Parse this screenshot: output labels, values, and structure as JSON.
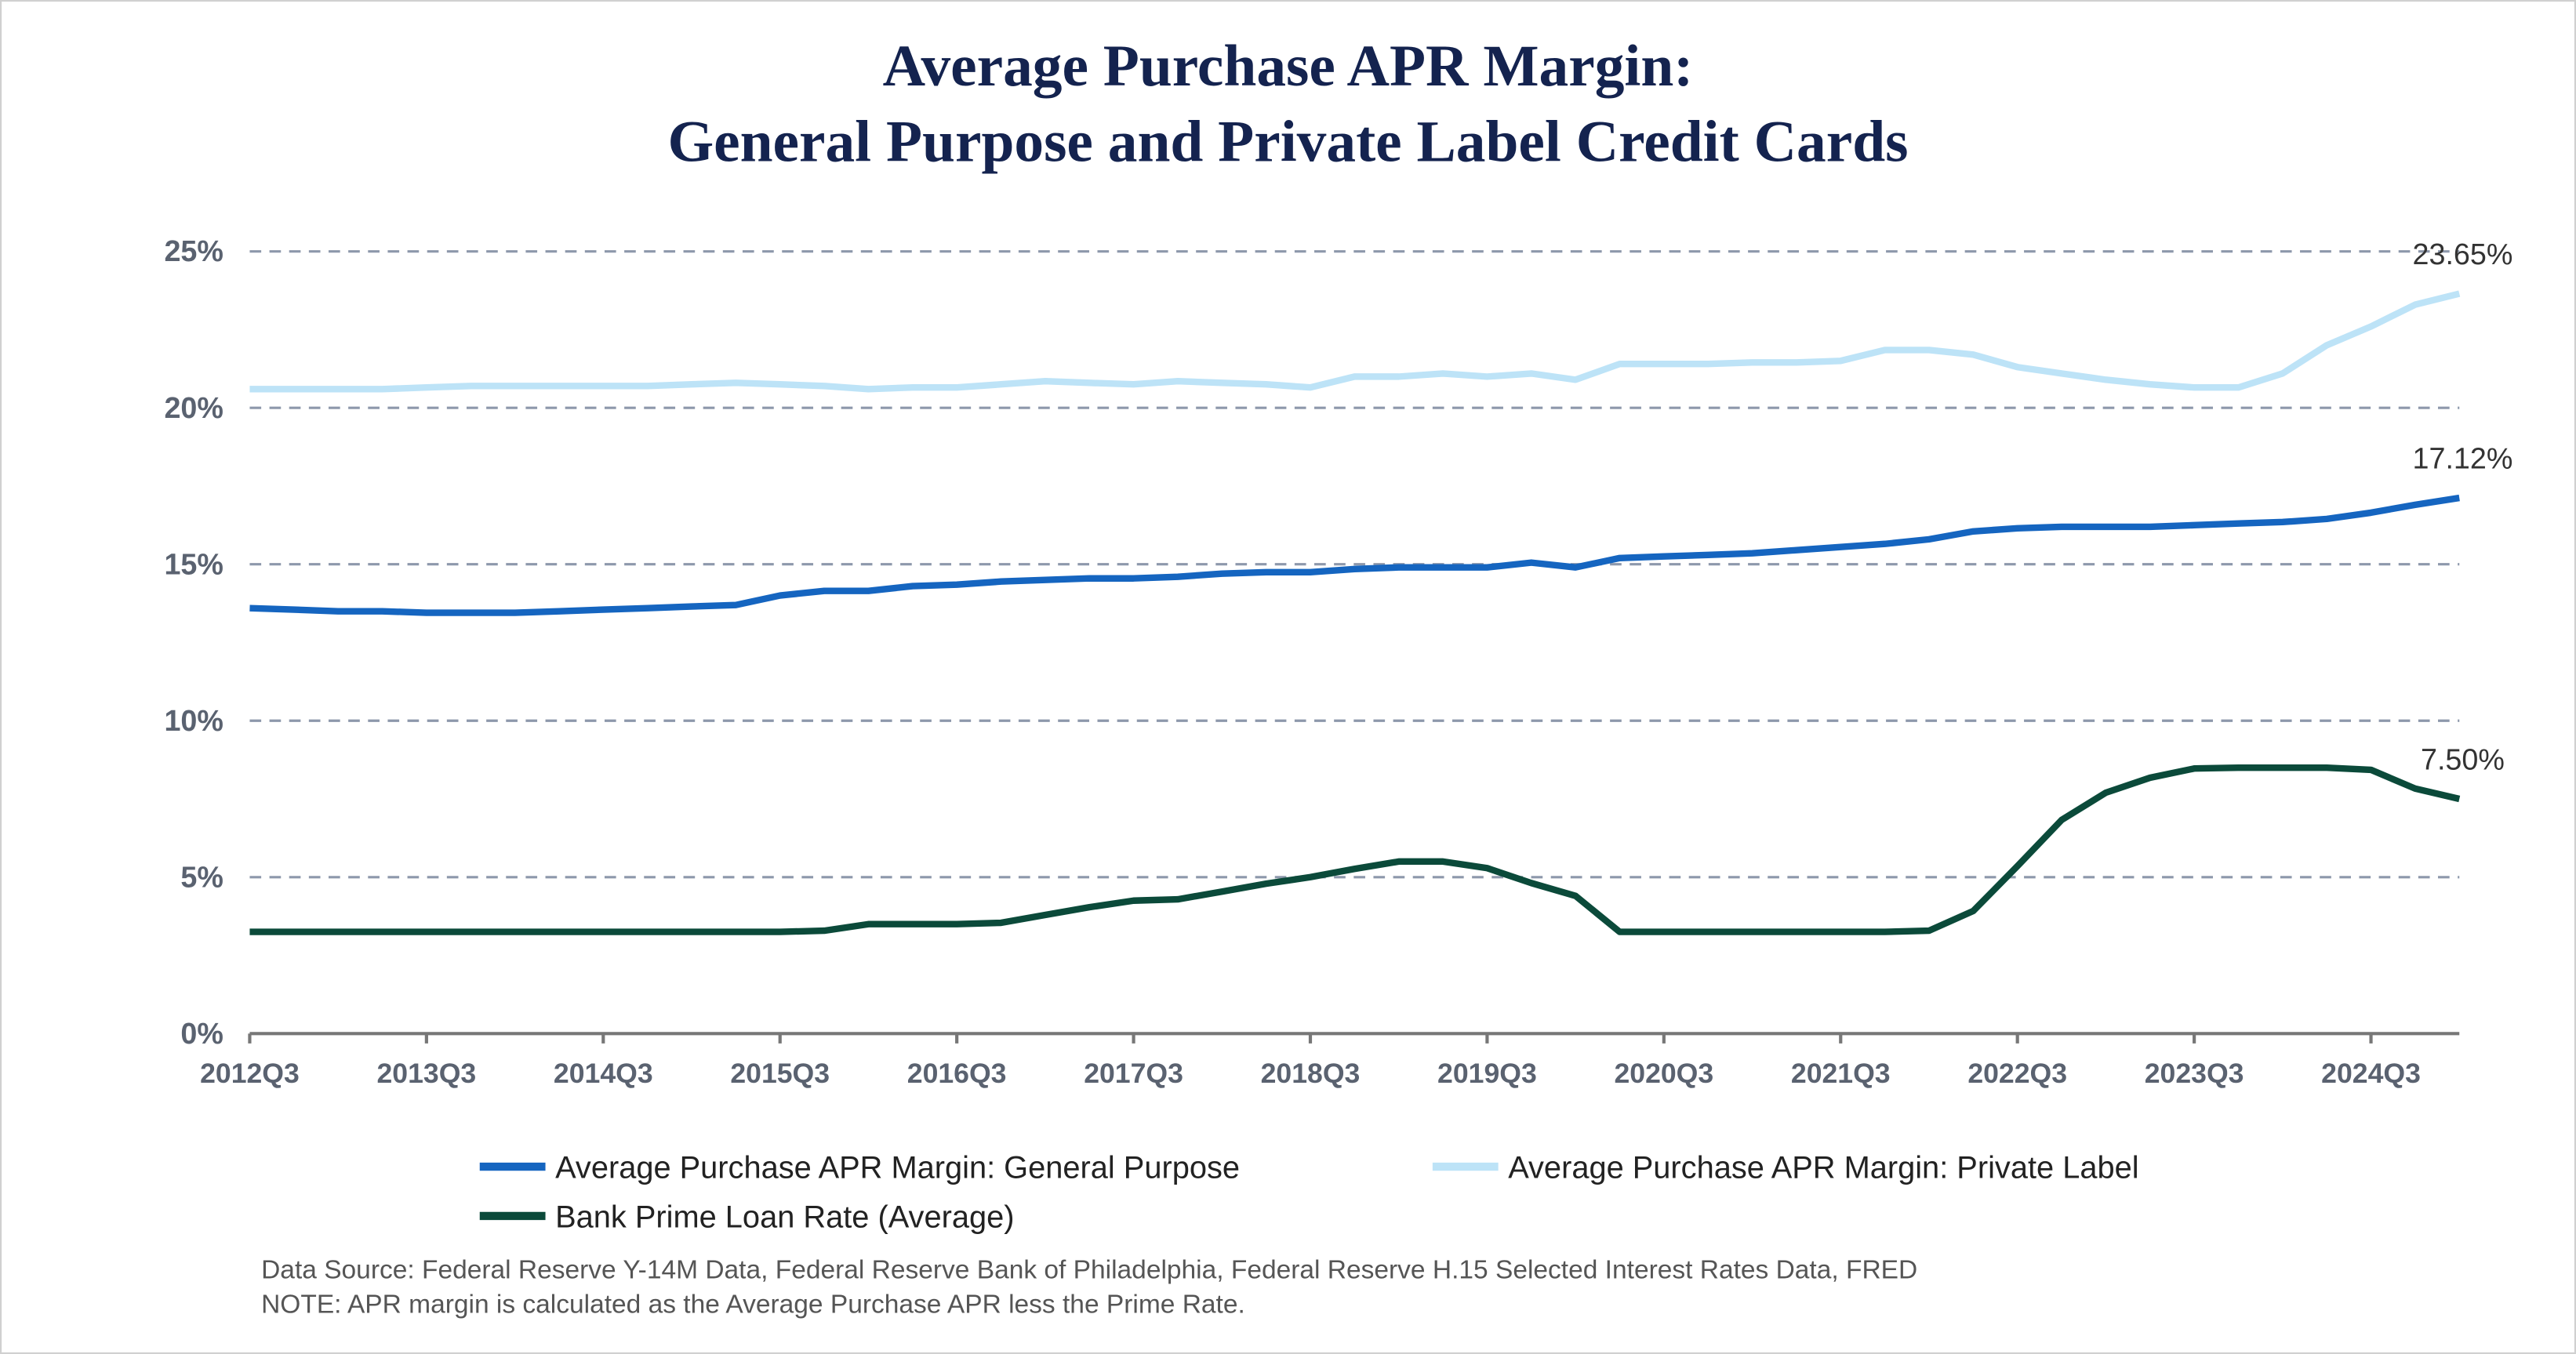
{
  "chart_data": {
    "type": "line",
    "title": [
      "Average Purchase APR Margin:",
      "General Purpose and Private Label Credit Cards"
    ],
    "categories": [
      "2012Q3",
      null,
      null,
      null,
      "2013Q3",
      null,
      null,
      null,
      "2014Q3",
      null,
      null,
      null,
      "2015Q3",
      null,
      null,
      null,
      "2016Q3",
      null,
      null,
      null,
      "2017Q3",
      null,
      null,
      null,
      "2018Q3",
      null,
      null,
      null,
      "2019Q3",
      null,
      null,
      null,
      "2020Q3",
      null,
      null,
      null,
      "2021Q3",
      null,
      null,
      null,
      "2022Q3",
      null,
      null,
      null,
      "2023Q3",
      null,
      null,
      null,
      "2024Q3",
      null,
      null
    ],
    "series": [
      {
        "name": "Average Purchase APR Margin: General Purpose",
        "color": "#1565c0",
        "values": [
          13.6,
          13.55,
          13.5,
          13.5,
          13.45,
          13.45,
          13.45,
          13.5,
          13.55,
          13.6,
          13.65,
          13.7,
          14.0,
          14.15,
          14.15,
          14.3,
          14.35,
          14.45,
          14.5,
          14.55,
          14.55,
          14.6,
          14.7,
          14.75,
          14.75,
          14.85,
          14.9,
          14.9,
          14.9,
          15.05,
          14.9,
          15.2,
          15.25,
          15.3,
          15.35,
          15.45,
          15.55,
          15.65,
          15.8,
          16.05,
          16.15,
          16.2,
          16.2,
          16.2,
          16.25,
          16.3,
          16.35,
          16.45,
          16.65,
          16.9,
          17.12
        ],
        "end_label": "17.12%"
      },
      {
        "name": "Average Purchase APR Margin: Private Label",
        "color": "#bde3f7",
        "values": [
          20.6,
          20.6,
          20.6,
          20.6,
          20.65,
          20.7,
          20.7,
          20.7,
          20.7,
          20.7,
          20.75,
          20.8,
          20.75,
          20.7,
          20.6,
          20.65,
          20.65,
          20.75,
          20.85,
          20.8,
          20.75,
          20.85,
          20.8,
          20.75,
          20.65,
          21.0,
          21.0,
          21.1,
          21.0,
          21.1,
          20.9,
          21.4,
          21.4,
          21.4,
          21.45,
          21.45,
          21.5,
          21.85,
          21.85,
          21.7,
          21.3,
          21.1,
          20.9,
          20.75,
          20.65,
          20.65,
          21.1,
          22.0,
          22.6,
          23.3,
          23.65
        ],
        "end_label": "23.65%"
      },
      {
        "name": "Bank Prime Loan Rate (Average)",
        "color": "#0b4a3a",
        "values": [
          3.25,
          3.25,
          3.25,
          3.25,
          3.25,
          3.25,
          3.25,
          3.25,
          3.25,
          3.25,
          3.25,
          3.25,
          3.25,
          3.29,
          3.5,
          3.5,
          3.5,
          3.54,
          3.79,
          4.04,
          4.25,
          4.29,
          4.54,
          4.79,
          5.0,
          5.26,
          5.5,
          5.5,
          5.29,
          4.81,
          4.4,
          3.25,
          3.25,
          3.25,
          3.25,
          3.25,
          3.25,
          3.25,
          3.29,
          3.92,
          5.35,
          6.83,
          7.7,
          8.18,
          8.47,
          8.5,
          8.5,
          8.5,
          8.43,
          7.83,
          7.5
        ],
        "end_label": "7.50%"
      }
    ],
    "ylim": [
      0,
      25
    ],
    "yticks": [
      {
        "value": 0,
        "label": "0%"
      },
      {
        "value": 5,
        "label": "5%"
      },
      {
        "value": 10,
        "label": "10%"
      },
      {
        "value": 15,
        "label": "15%"
      },
      {
        "value": 20,
        "label": "20%"
      },
      {
        "value": 25,
        "label": "25%"
      }
    ],
    "grid": true,
    "notes": [
      "Data Source: Federal Reserve Y-14M Data, Federal Reserve Bank of Philadelphia, Federal Reserve H.15 Selected Interest Rates Data, FRED",
      "NOTE: APR margin is calculated as the Average Purchase APR less the Prime Rate."
    ]
  }
}
